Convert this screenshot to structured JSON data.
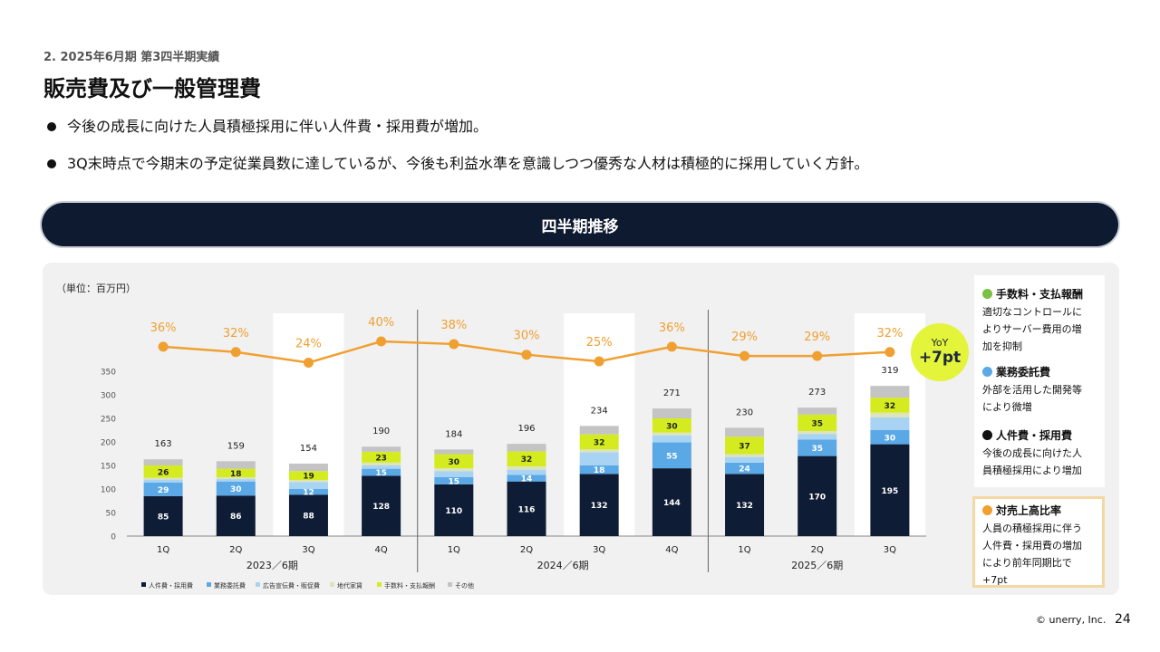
{
  "header": {
    "section_label": "2. 2025年6月期 第3四半期実績",
    "title": "販売費及び一般管理費"
  },
  "bullets": [
    "今後の成長に向けた人員積極採用に伴い人件費・採用費が増加。",
    "3Q末時点で今期末の予定従業員数に達しているが、今後も利益水準を意識しつつ優秀な人材は積極的に採用していく方針。"
  ],
  "banner": {
    "title": "四半期推移"
  },
  "unit_label": "（単位：百万円）",
  "yoy_badge": {
    "label": "YoY",
    "value": "+7pt"
  },
  "notes": [
    {
      "title": "手数料・支払報酬",
      "color": "#7ac143",
      "lines": [
        "適切なコントロールに",
        "よりサーバー費用の増",
        "加を抑制"
      ]
    },
    {
      "title": "業務委託費",
      "color": "#5aa9e6",
      "lines": [
        "外部を活用した開発等",
        "により微増"
      ]
    },
    {
      "title": "人件費・採用費",
      "color": "#111111",
      "lines": [
        "今後の成長に向けた人",
        "員積極採用により増加"
      ]
    },
    {
      "title": "対売上高比率",
      "color": "#f0a030",
      "lines": [
        "人員の積極採用に伴う",
        "人件費・採用費の増加",
        "により前年同期比で",
        "+7pt"
      ]
    }
  ],
  "footer": {
    "copyright": "© unerry, Inc.",
    "page": "24"
  },
  "chart_data": {
    "type": "bar",
    "stacked": true,
    "categories": [
      "1Q",
      "2Q",
      "3Q",
      "4Q",
      "1Q",
      "2Q",
      "3Q",
      "4Q",
      "1Q",
      "2Q",
      "3Q"
    ],
    "groups": [
      {
        "label": "2023／6期",
        "count": 4
      },
      {
        "label": "2024／6期",
        "count": 4
      },
      {
        "label": "2025／6期",
        "count": 3
      }
    ],
    "ylim": [
      0,
      350
    ],
    "yticks": [
      0,
      50,
      100,
      150,
      200,
      250,
      300,
      350
    ],
    "totals": [
      163,
      159,
      154,
      190,
      184,
      196,
      234,
      271,
      230,
      273,
      319
    ],
    "highlight_categories": [
      2,
      6,
      10
    ],
    "series": [
      {
        "name": "人件費・採用費",
        "color": "#0f1c35",
        "label_color": "#ffffff",
        "values": [
          85,
          86,
          88,
          128,
          110,
          116,
          132,
          144,
          132,
          170,
          195
        ],
        "labels": [
          "85",
          "86",
          "88",
          "128",
          "110",
          "116",
          "132",
          "144",
          "132",
          "170",
          "195"
        ]
      },
      {
        "name": "業務委託費",
        "color": "#5aa9e6",
        "label_color": "#ffffff",
        "values": [
          29,
          30,
          12,
          15,
          15,
          14,
          18,
          55,
          24,
          35,
          30
        ],
        "labels": [
          "29",
          "30",
          "12",
          "15",
          "15",
          "14",
          "18",
          "55",
          "24",
          "35",
          "30"
        ]
      },
      {
        "name": "広告宣伝費・販促費",
        "color": "#a9d3f3",
        "label_color": "#ffffff",
        "values": [
          6,
          5,
          15,
          7,
          13,
          11,
          28,
          15,
          12,
          12,
          27
        ],
        "labels": [
          "",
          "",
          "",
          "",
          "",
          "",
          "",
          "",
          "",
          "",
          ""
        ]
      },
      {
        "name": "地代家賃",
        "color": "#dde3bc",
        "label_color": "#333333",
        "values": [
          4,
          4,
          4,
          6,
          6,
          7,
          6,
          6,
          6,
          6,
          10
        ],
        "labels": [
          "",
          "",
          "",
          "",
          "",
          "",
          "",
          "",
          "",
          "",
          ""
        ]
      },
      {
        "name": "手数料・支払報酬",
        "color": "#d4ec1f",
        "label_color": "#222222",
        "values": [
          26,
          18,
          19,
          23,
          30,
          32,
          32,
          30,
          37,
          35,
          32
        ],
        "labels": [
          "26",
          "18",
          "19",
          "23",
          "30",
          "32",
          "32",
          "30",
          "37",
          "35",
          "32"
        ]
      },
      {
        "name": "その他",
        "color": "#c4c4c4",
        "label_color": "#333333",
        "values": [
          13,
          16,
          16,
          11,
          10,
          16,
          18,
          21,
          19,
          15,
          25
        ],
        "labels": [
          "",
          "",
          "",
          "",
          "",
          "",
          "",
          "",
          "",
          "",
          ""
        ]
      }
    ],
    "ratio_line": {
      "name": "対売上高比率",
      "color": "#f0a030",
      "values": [
        36,
        32,
        24,
        40,
        38,
        30,
        25,
        36,
        29,
        29,
        32
      ],
      "labels": [
        "36%",
        "32%",
        "24%",
        "40%",
        "38%",
        "30%",
        "25%",
        "36%",
        "29%",
        "29%",
        "32%"
      ]
    },
    "legend_position": "bottom-left"
  }
}
